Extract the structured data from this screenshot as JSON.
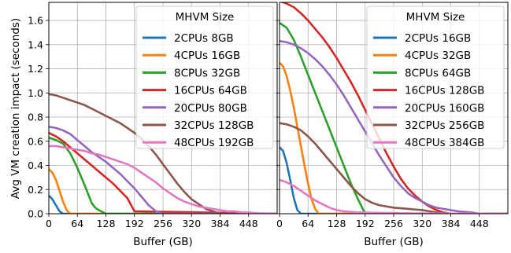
{
  "figure": {
    "ylabel": "Avg VM creation impact (seconds)",
    "legend_title": "MHVM Size"
  },
  "chart_data": [
    {
      "type": "line",
      "xlabel": "Buffer (GB)",
      "ylabel": "Avg VM creation impact (seconds)",
      "xlim": [
        0,
        512
      ],
      "ylim": [
        0,
        1.75
      ],
      "xticks": [
        0,
        64,
        128,
        192,
        256,
        320,
        384,
        448
      ],
      "yticks": [
        0.0,
        0.2,
        0.4,
        0.6,
        0.8,
        1.0,
        1.2,
        1.4,
        1.6
      ],
      "grid": true,
      "legend": {
        "title": "MHVM Size",
        "placement": "top-right"
      },
      "series": [
        {
          "name": "2CPUs 8GB",
          "color": "#1f77b4",
          "x": [
            0,
            8,
            16,
            24,
            32,
            512
          ],
          "y": [
            0.15,
            0.12,
            0.07,
            0.02,
            0,
            0
          ]
        },
        {
          "name": "4CPUs 16GB",
          "color": "#ff7f0e",
          "x": [
            0,
            8,
            16,
            24,
            32,
            40,
            48,
            512
          ],
          "y": [
            0.37,
            0.34,
            0.28,
            0.19,
            0.1,
            0.03,
            0,
            0
          ]
        },
        {
          "name": "8CPUs 32GB",
          "color": "#2ca02c",
          "x": [
            0,
            16,
            32,
            48,
            64,
            80,
            96,
            104,
            112,
            128,
            512
          ],
          "y": [
            0.63,
            0.61,
            0.58,
            0.5,
            0.38,
            0.24,
            0.09,
            0.05,
            0.03,
            0,
            0
          ]
        },
        {
          "name": "16CPUs 64GB",
          "color": "#d62728",
          "x": [
            0,
            16,
            32,
            48,
            64,
            80,
            96,
            112,
            128,
            144,
            160,
            176,
            192,
            512
          ],
          "y": [
            0.67,
            0.64,
            0.6,
            0.55,
            0.5,
            0.45,
            0.4,
            0.35,
            0.3,
            0.25,
            0.19,
            0.13,
            0.02,
            0
          ]
        },
        {
          "name": "20CPUs 80GB",
          "color": "#9467bd",
          "x": [
            0,
            16,
            32,
            48,
            64,
            80,
            96,
            112,
            128,
            144,
            160,
            176,
            192,
            208,
            224,
            240,
            256,
            512
          ],
          "y": [
            0.72,
            0.71,
            0.69,
            0.66,
            0.61,
            0.56,
            0.51,
            0.47,
            0.43,
            0.38,
            0.33,
            0.27,
            0.21,
            0.14,
            0.07,
            0.02,
            0,
            0
          ]
        },
        {
          "name": "32CPUs 128GB",
          "color": "#8c564b",
          "x": [
            0,
            16,
            32,
            48,
            64,
            80,
            96,
            112,
            128,
            144,
            160,
            176,
            192,
            208,
            224,
            240,
            256,
            272,
            288,
            304,
            320,
            336,
            352,
            368,
            384,
            512
          ],
          "y": [
            0.99,
            0.98,
            0.96,
            0.94,
            0.92,
            0.9,
            0.87,
            0.84,
            0.81,
            0.78,
            0.75,
            0.71,
            0.67,
            0.62,
            0.56,
            0.49,
            0.41,
            0.33,
            0.25,
            0.18,
            0.12,
            0.08,
            0.04,
            0.02,
            0,
            0
          ]
        },
        {
          "name": "48CPUs 192GB",
          "color": "#e377c2",
          "x": [
            0,
            16,
            32,
            48,
            64,
            80,
            96,
            112,
            128,
            144,
            160,
            176,
            192,
            208,
            224,
            240,
            256,
            272,
            288,
            304,
            320,
            336,
            352,
            368,
            384,
            400,
            416,
            432,
            448,
            464,
            480,
            512
          ],
          "y": [
            0.56,
            0.56,
            0.55,
            0.54,
            0.53,
            0.52,
            0.5,
            0.49,
            0.47,
            0.45,
            0.43,
            0.41,
            0.38,
            0.34,
            0.3,
            0.26,
            0.21,
            0.17,
            0.13,
            0.1,
            0.08,
            0.06,
            0.05,
            0.04,
            0.03,
            0.02,
            0.02,
            0.01,
            0.01,
            0.005,
            0,
            0
          ]
        }
      ]
    },
    {
      "type": "line",
      "xlabel": "Buffer (GB)",
      "xlim": [
        0,
        512
      ],
      "ylim": [
        0,
        1.75
      ],
      "xticks": [
        0,
        64,
        128,
        192,
        256,
        320,
        384,
        448
      ],
      "grid": true,
      "legend": {
        "title": "MHVM Size",
        "placement": "top-right"
      },
      "series": [
        {
          "name": "2CPUs 16GB",
          "color": "#1f77b4",
          "x": [
            0,
            8,
            16,
            24,
            32,
            40,
            48,
            512
          ],
          "y": [
            0.55,
            0.52,
            0.42,
            0.28,
            0.13,
            0.03,
            0,
            0
          ]
        },
        {
          "name": "4CPUs 32GB",
          "color": "#ff7f0e",
          "x": [
            0,
            8,
            16,
            24,
            32,
            40,
            48,
            56,
            64,
            72,
            80,
            88,
            512
          ],
          "y": [
            1.25,
            1.22,
            1.14,
            1.02,
            0.88,
            0.72,
            0.56,
            0.4,
            0.25,
            0.12,
            0.04,
            0,
            0
          ]
        },
        {
          "name": "8CPUs 64GB",
          "color": "#2ca02c",
          "x": [
            0,
            16,
            32,
            48,
            64,
            80,
            96,
            112,
            128,
            144,
            160,
            176,
            192,
            512
          ],
          "y": [
            1.58,
            1.54,
            1.44,
            1.3,
            1.15,
            1.0,
            0.85,
            0.7,
            0.55,
            0.4,
            0.25,
            0.12,
            0,
            0
          ]
        },
        {
          "name": "16CPUs 128GB",
          "color": "#d62728",
          "x": [
            0,
            16,
            32,
            48,
            64,
            80,
            96,
            112,
            128,
            144,
            160,
            176,
            192,
            208,
            224,
            240,
            256,
            272,
            288,
            304,
            320,
            336,
            352,
            368,
            384,
            512
          ],
          "y": [
            1.76,
            1.74,
            1.71,
            1.66,
            1.6,
            1.53,
            1.46,
            1.38,
            1.29,
            1.19,
            1.09,
            0.98,
            0.86,
            0.74,
            0.62,
            0.5,
            0.39,
            0.29,
            0.21,
            0.15,
            0.1,
            0.06,
            0.03,
            0.01,
            0,
            0
          ]
        },
        {
          "name": "20CPUs 160GB",
          "color": "#9467bd",
          "x": [
            0,
            16,
            32,
            48,
            64,
            80,
            96,
            112,
            128,
            144,
            160,
            176,
            192,
            208,
            224,
            240,
            256,
            272,
            288,
            304,
            320,
            336,
            352,
            368,
            384,
            400,
            416,
            432,
            448,
            512
          ],
          "y": [
            1.43,
            1.42,
            1.4,
            1.37,
            1.33,
            1.28,
            1.22,
            1.15,
            1.07,
            0.98,
            0.88,
            0.78,
            0.68,
            0.58,
            0.48,
            0.39,
            0.3,
            0.23,
            0.17,
            0.13,
            0.1,
            0.07,
            0.05,
            0.04,
            0.03,
            0.02,
            0.015,
            0.01,
            0,
            0
          ]
        },
        {
          "name": "32CPUs 256GB",
          "color": "#8c564b",
          "x": [
            0,
            16,
            32,
            48,
            64,
            80,
            96,
            112,
            128,
            144,
            160,
            176,
            192,
            208,
            224,
            240,
            256,
            272,
            288,
            304,
            320,
            336,
            352,
            368,
            384,
            512
          ],
          "y": [
            0.75,
            0.74,
            0.72,
            0.69,
            0.64,
            0.58,
            0.51,
            0.44,
            0.37,
            0.3,
            0.23,
            0.17,
            0.12,
            0.09,
            0.07,
            0.06,
            0.05,
            0.045,
            0.04,
            0.035,
            0.03,
            0.02,
            0.01,
            0.005,
            0,
            0
          ]
        },
        {
          "name": "48CPUs 384GB",
          "color": "#e377c2",
          "x": [
            0,
            16,
            32,
            48,
            64,
            80,
            96,
            112,
            128,
            144,
            160,
            176,
            192,
            208,
            224,
            240,
            256,
            272,
            288,
            304,
            320,
            336,
            352,
            368,
            384,
            400,
            416,
            432,
            448,
            464,
            480,
            496,
            512
          ],
          "y": [
            0.28,
            0.26,
            0.23,
            0.19,
            0.15,
            0.11,
            0.08,
            0.05,
            0.03,
            0.02,
            0.015,
            0.01,
            0.01,
            0.008,
            0.007,
            0.006,
            0.005,
            0.004,
            0.004,
            0.003,
            0.003,
            0.002,
            0.002,
            0.002,
            0.001,
            0.001,
            0.001,
            0.001,
            0.001,
            0,
            0,
            0,
            0
          ]
        }
      ]
    }
  ]
}
